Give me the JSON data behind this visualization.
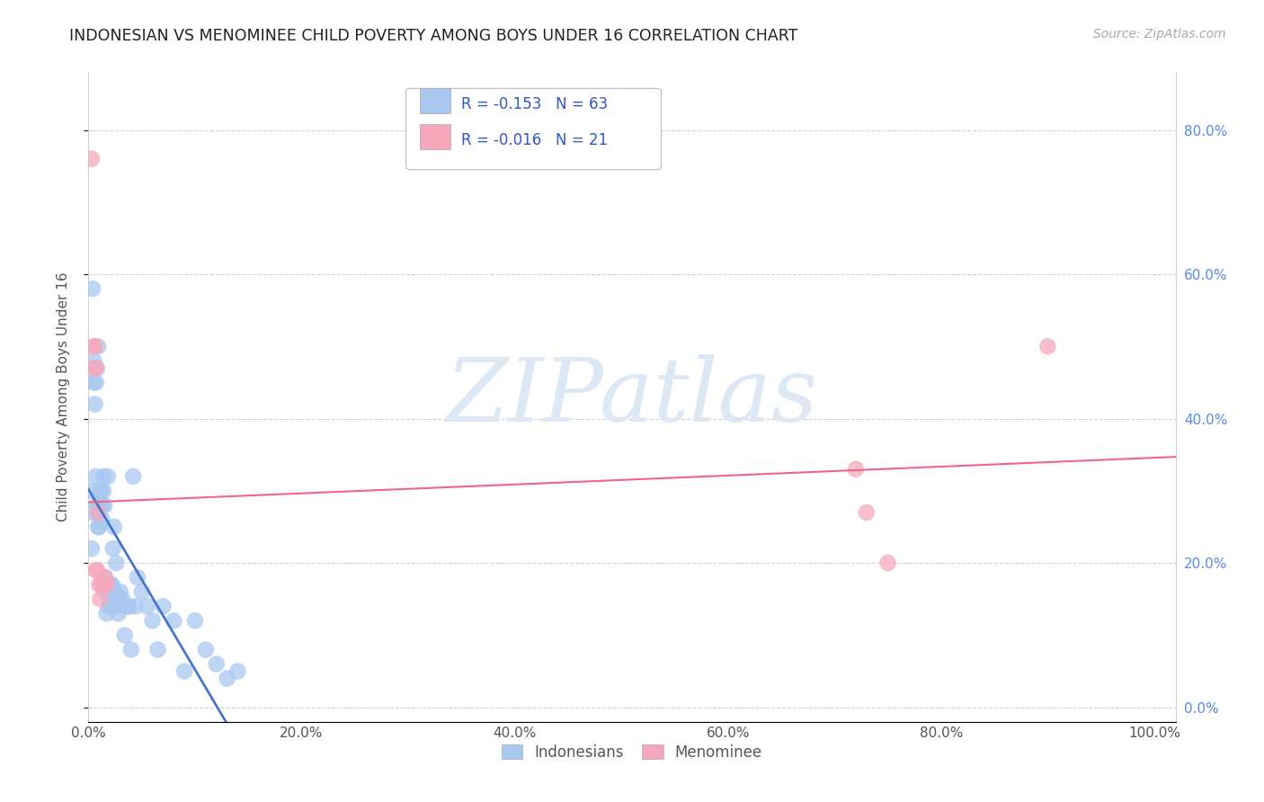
{
  "title": "INDONESIAN VS MENOMINEE CHILD POVERTY AMONG BOYS UNDER 16 CORRELATION CHART",
  "source": "Source: ZipAtlas.com",
  "ylabel": "Child Poverty Among Boys Under 16",
  "background_color": "#ffffff",
  "grid_color": "#d0d0d0",
  "watermark_text": "ZIPatlas",
  "watermark_color": "#dde8f5",
  "indonesian_R": -0.153,
  "indonesian_N": 63,
  "menominee_R": -0.016,
  "menominee_N": 21,
  "indonesian_color": "#a8c8f0",
  "menominee_color": "#f5a8bc",
  "indonesian_line_color": "#4477cc",
  "menominee_line_color": "#ee6688",
  "indonesian_x": [
    0.002,
    0.003,
    0.003,
    0.004,
    0.005,
    0.005,
    0.006,
    0.007,
    0.007,
    0.008,
    0.008,
    0.009,
    0.009,
    0.009,
    0.01,
    0.01,
    0.01,
    0.011,
    0.011,
    0.012,
    0.012,
    0.013,
    0.013,
    0.014,
    0.014,
    0.015,
    0.015,
    0.016,
    0.017,
    0.018,
    0.019,
    0.02,
    0.02,
    0.021,
    0.022,
    0.023,
    0.024,
    0.025,
    0.026,
    0.027,
    0.028,
    0.029,
    0.03,
    0.032,
    0.034,
    0.036,
    0.038,
    0.04,
    0.042,
    0.044,
    0.046,
    0.05,
    0.055,
    0.06,
    0.065,
    0.07,
    0.08,
    0.09,
    0.1,
    0.11,
    0.12,
    0.13,
    0.14
  ],
  "indonesian_y": [
    0.27,
    0.22,
    0.3,
    0.58,
    0.48,
    0.45,
    0.42,
    0.45,
    0.32,
    0.47,
    0.28,
    0.5,
    0.27,
    0.25,
    0.28,
    0.27,
    0.25,
    0.3,
    0.28,
    0.3,
    0.28,
    0.28,
    0.26,
    0.32,
    0.3,
    0.28,
    0.18,
    0.16,
    0.13,
    0.32,
    0.14,
    0.16,
    0.14,
    0.17,
    0.17,
    0.22,
    0.25,
    0.16,
    0.2,
    0.14,
    0.13,
    0.15,
    0.16,
    0.15,
    0.1,
    0.14,
    0.14,
    0.08,
    0.32,
    0.14,
    0.18,
    0.16,
    0.14,
    0.12,
    0.08,
    0.14,
    0.12,
    0.05,
    0.12,
    0.08,
    0.06,
    0.04,
    0.05
  ],
  "menominee_x": [
    0.003,
    0.005,
    0.005,
    0.006,
    0.007,
    0.007,
    0.008,
    0.009,
    0.01,
    0.011,
    0.012,
    0.013,
    0.014,
    0.015,
    0.016,
    0.016,
    0.017,
    0.72,
    0.73,
    0.75,
    0.9
  ],
  "menominee_y": [
    0.76,
    0.5,
    0.47,
    0.5,
    0.47,
    0.19,
    0.19,
    0.27,
    0.17,
    0.15,
    0.17,
    0.17,
    0.17,
    0.17,
    0.18,
    0.17,
    0.17,
    0.33,
    0.27,
    0.2,
    0.5
  ],
  "xlim": [
    0.0,
    1.02
  ],
  "ylim": [
    -0.02,
    0.88
  ],
  "xticks": [
    0.0,
    0.2,
    0.4,
    0.6,
    0.8,
    1.0
  ],
  "xtick_labels": [
    "0.0%",
    "20.0%",
    "40.0%",
    "60.0%",
    "80.0%",
    "100.0%"
  ],
  "yticks": [
    0.0,
    0.2,
    0.4,
    0.6,
    0.8
  ],
  "ytick_labels_right": [
    "0.0%",
    "20.0%",
    "40.0%",
    "60.0%",
    "80.0%"
  ]
}
